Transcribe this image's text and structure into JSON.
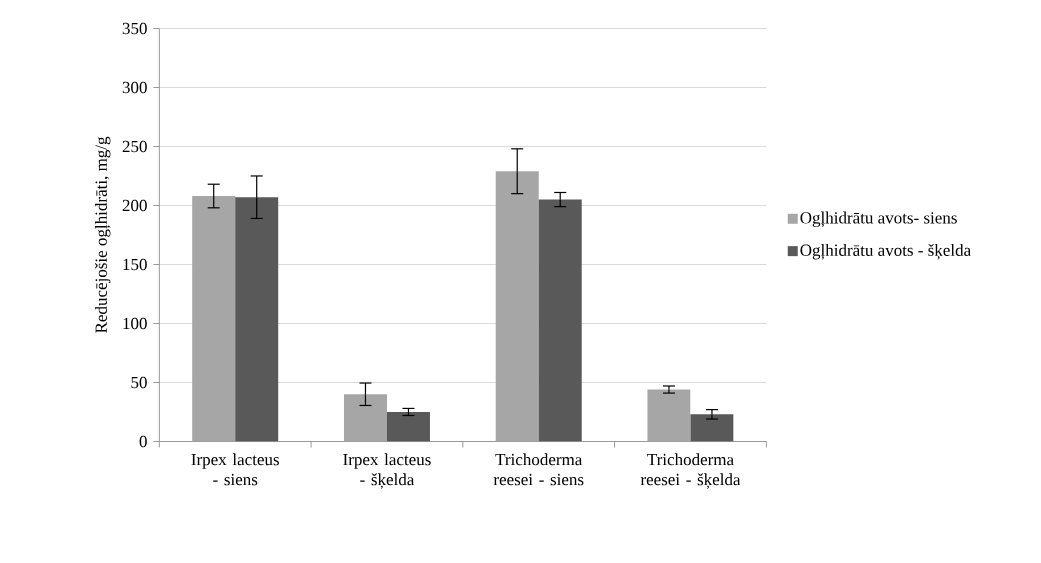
{
  "chart_data": {
    "type": "bar",
    "ylabel": "Reducējošie ogļhidrāti, mg/g",
    "categories": [
      "Irpex lacteus - siens",
      "Irpex lacteus - šķelda",
      "Trichoderma reesei - siens",
      "Trichoderma reesei - šķelda"
    ],
    "series": [
      {
        "name": "Ogļhidrātu avots- siens",
        "color": "#a6a6a6",
        "values": [
          208,
          40,
          229,
          44
        ],
        "errors": [
          10,
          9.5,
          19,
          3
        ]
      },
      {
        "name": "Ogļhidrātu avots - šķelda",
        "color": "#595959",
        "values": [
          207,
          25,
          205,
          23
        ],
        "errors": [
          18,
          3,
          6,
          4
        ]
      }
    ],
    "ylim": [
      0,
      350
    ],
    "yticks": [
      0,
      50,
      100,
      150,
      200,
      250,
      300,
      350
    ],
    "grid": "y",
    "legend": "right"
  }
}
